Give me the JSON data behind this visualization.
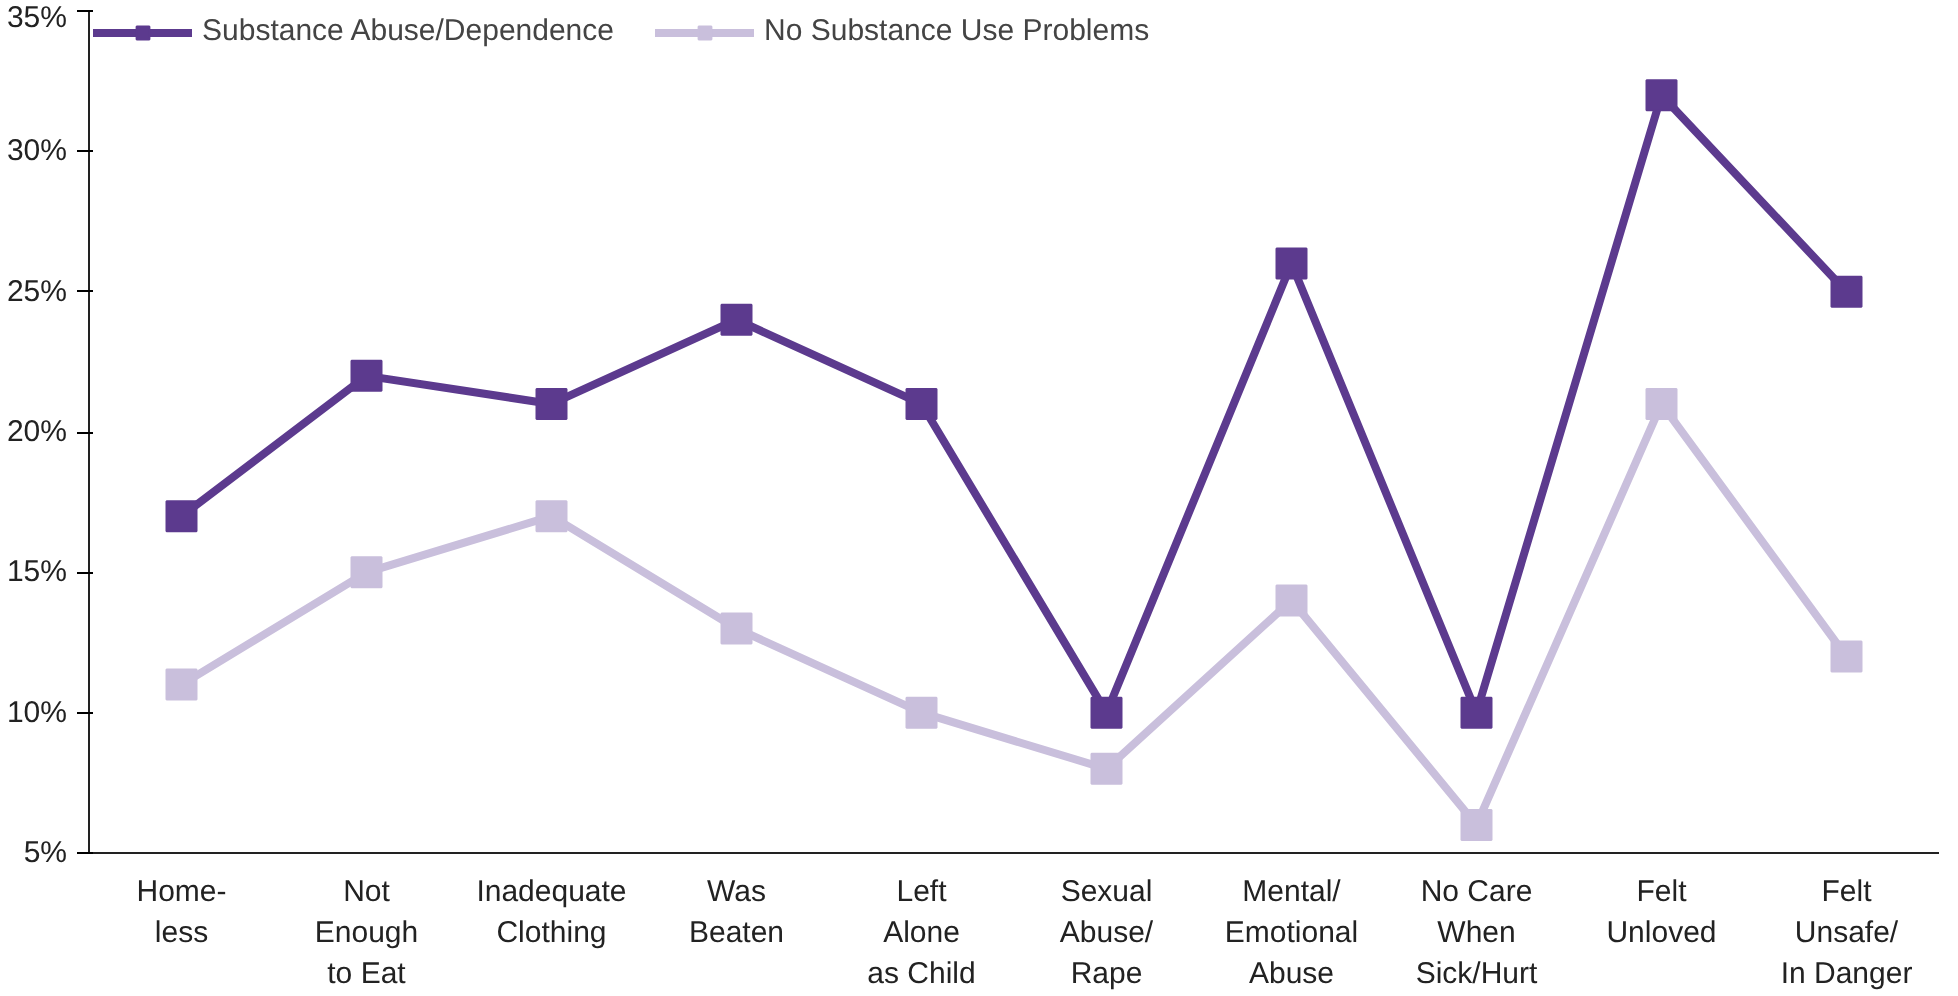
{
  "chart_data": {
    "type": "line",
    "categories": [
      "Home-\nless",
      "Not\nEnough\nto Eat",
      "Inadequate\nClothing",
      "Was\nBeaten",
      "Left\nAlone\nas Child",
      "Sexual\nAbuse/\nRape",
      "Mental/\nEmotional\nAbuse",
      "No Care\nWhen\nSick/Hurt",
      "Felt\nUnloved",
      "Felt\nUnsafe/\nIn Danger"
    ],
    "series": [
      {
        "name": "Substance Abuse/Dependence",
        "color": "#5c3a8e",
        "values": [
          17,
          22,
          21,
          24,
          21,
          10,
          26,
          10,
          32,
          25
        ]
      },
      {
        "name": "No Substance Use Problems",
        "color": "#c9bfdc",
        "values": [
          11,
          15,
          17,
          13,
          10,
          8,
          14,
          6,
          21,
          12
        ]
      }
    ],
    "ylim": [
      5,
      35
    ],
    "yticks": [
      {
        "value": 5,
        "label": "5%"
      },
      {
        "value": 10,
        "label": "10%"
      },
      {
        "value": 15,
        "label": "15%"
      },
      {
        "value": 20,
        "label": "20%"
      },
      {
        "value": 25,
        "label": "25%"
      },
      {
        "value": 30,
        "label": "30%"
      },
      {
        "value": 35,
        "label": "35%"
      }
    ],
    "grid": false,
    "legend": "top left",
    "marker": "square",
    "line_style": "solid"
  }
}
